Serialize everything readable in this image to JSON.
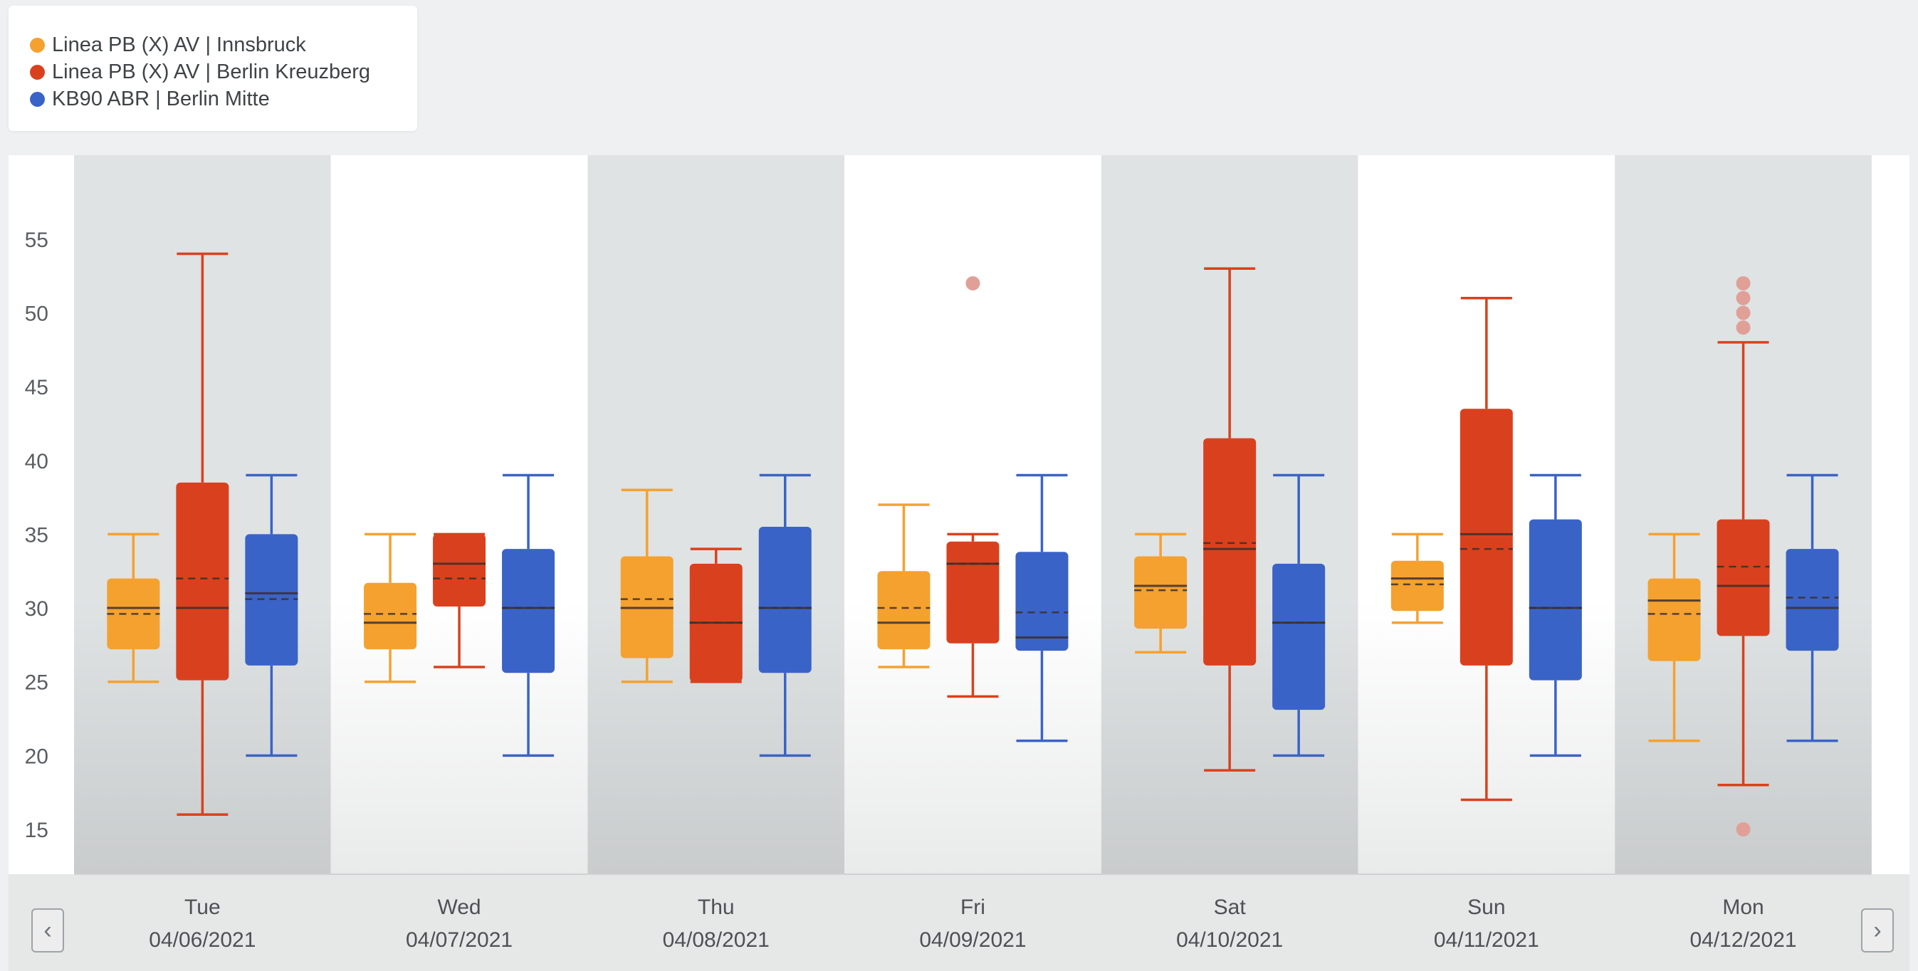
{
  "legend": [
    {
      "label": "Linea PB (X) AV | Innsbruck",
      "color": "#f5a12f"
    },
    {
      "label": "Linea PB (X) AV | Berlin Kreuzberg",
      "color": "#d9411e"
    },
    {
      "label": "KB90 ABR | Berlin Mitte",
      "color": "#3a63c8"
    }
  ],
  "navigation": {
    "prev_icon": "chevron-left-icon",
    "next_icon": "chevron-right-icon"
  },
  "chart_data": {
    "type": "box",
    "title": "",
    "xlabel": "",
    "ylabel": "",
    "ylim": [
      12,
      60
    ],
    "yticks": [
      15,
      20,
      25,
      30,
      35,
      40,
      45,
      50,
      55
    ],
    "grid": false,
    "legend_position": "top-left",
    "categories": [
      {
        "day": "Tue",
        "date": "04/06/2021"
      },
      {
        "day": "Wed",
        "date": "04/07/2021"
      },
      {
        "day": "Thu",
        "date": "04/08/2021"
      },
      {
        "day": "Fri",
        "date": "04/09/2021"
      },
      {
        "day": "Sat",
        "date": "04/10/2021"
      },
      {
        "day": "Sun",
        "date": "04/11/2021"
      },
      {
        "day": "Mon",
        "date": "04/12/2021"
      }
    ],
    "series": [
      {
        "name": "Linea PB (X) AV | Innsbruck",
        "color": "#f5a12f",
        "boxes": [
          {
            "min": 25,
            "q1": 27.2,
            "median": 30,
            "mean": 29.6,
            "q3": 32,
            "max": 35,
            "outliers": []
          },
          {
            "min": 25,
            "q1": 27.2,
            "median": 29,
            "mean": 29.6,
            "q3": 31.7,
            "max": 35,
            "outliers": []
          },
          {
            "min": 25,
            "q1": 26.6,
            "median": 30,
            "mean": 30.6,
            "q3": 33.5,
            "max": 38,
            "outliers": []
          },
          {
            "min": 26,
            "q1": 27.2,
            "median": 29,
            "mean": 30,
            "q3": 32.5,
            "max": 37,
            "outliers": []
          },
          {
            "min": 27,
            "q1": 28.6,
            "median": 31.5,
            "mean": 31.2,
            "q3": 33.5,
            "max": 35,
            "outliers": []
          },
          {
            "min": 29,
            "q1": 29.8,
            "median": 32,
            "mean": 31.6,
            "q3": 33.2,
            "max": 35,
            "outliers": []
          },
          {
            "min": 21,
            "q1": 26.4,
            "median": 30.5,
            "mean": 29.6,
            "q3": 32,
            "max": 35,
            "outliers": []
          }
        ]
      },
      {
        "name": "Linea PB (X) AV | Berlin Kreuzberg",
        "color": "#d9411e",
        "boxes": [
          {
            "min": 16,
            "q1": 25.1,
            "median": 30,
            "mean": 32,
            "q3": 38.5,
            "max": 54,
            "outliers": []
          },
          {
            "min": 26,
            "q1": 30.1,
            "median": 33,
            "mean": 32,
            "q3": 35,
            "max": 35,
            "outliers": []
          },
          {
            "min": 25,
            "q1": 25,
            "median": 29,
            "mean": 29,
            "q3": 33,
            "max": 34,
            "outliers": []
          },
          {
            "min": 24,
            "q1": 27.6,
            "median": 33,
            "mean": 33,
            "q3": 34.5,
            "max": 35,
            "outliers": [
              52
            ]
          },
          {
            "min": 19,
            "q1": 26.1,
            "median": 34,
            "mean": 34.4,
            "q3": 41.5,
            "max": 53,
            "outliers": []
          },
          {
            "min": 17,
            "q1": 26.1,
            "median": 35,
            "mean": 34,
            "q3": 43.5,
            "max": 51,
            "outliers": []
          },
          {
            "min": 18,
            "q1": 28.1,
            "median": 31.5,
            "mean": 32.8,
            "q3": 36,
            "max": 48,
            "outliers": [
              15,
              49,
              50,
              51,
              52
            ]
          }
        ]
      },
      {
        "name": "KB90 ABR | Berlin Mitte",
        "color": "#3a63c8",
        "boxes": [
          {
            "min": 20,
            "q1": 26.1,
            "median": 31,
            "mean": 30.6,
            "q3": 35,
            "max": 39,
            "outliers": []
          },
          {
            "min": 20,
            "q1": 25.6,
            "median": 30,
            "mean": 30,
            "q3": 34,
            "max": 39,
            "outliers": []
          },
          {
            "min": 20,
            "q1": 25.6,
            "median": 30,
            "mean": 30,
            "q3": 35.5,
            "max": 39,
            "outliers": []
          },
          {
            "min": 21,
            "q1": 27.1,
            "median": 28,
            "mean": 29.7,
            "q3": 33.8,
            "max": 39,
            "outliers": []
          },
          {
            "min": 20,
            "q1": 23.1,
            "median": 29,
            "mean": 29,
            "q3": 33,
            "max": 39,
            "outliers": []
          },
          {
            "min": 20,
            "q1": 25.1,
            "median": 30,
            "mean": 30,
            "q3": 36,
            "max": 39,
            "outliers": []
          },
          {
            "min": 21,
            "q1": 27.1,
            "median": 30,
            "mean": 30.7,
            "q3": 34,
            "max": 39,
            "outliers": []
          }
        ]
      }
    ]
  }
}
